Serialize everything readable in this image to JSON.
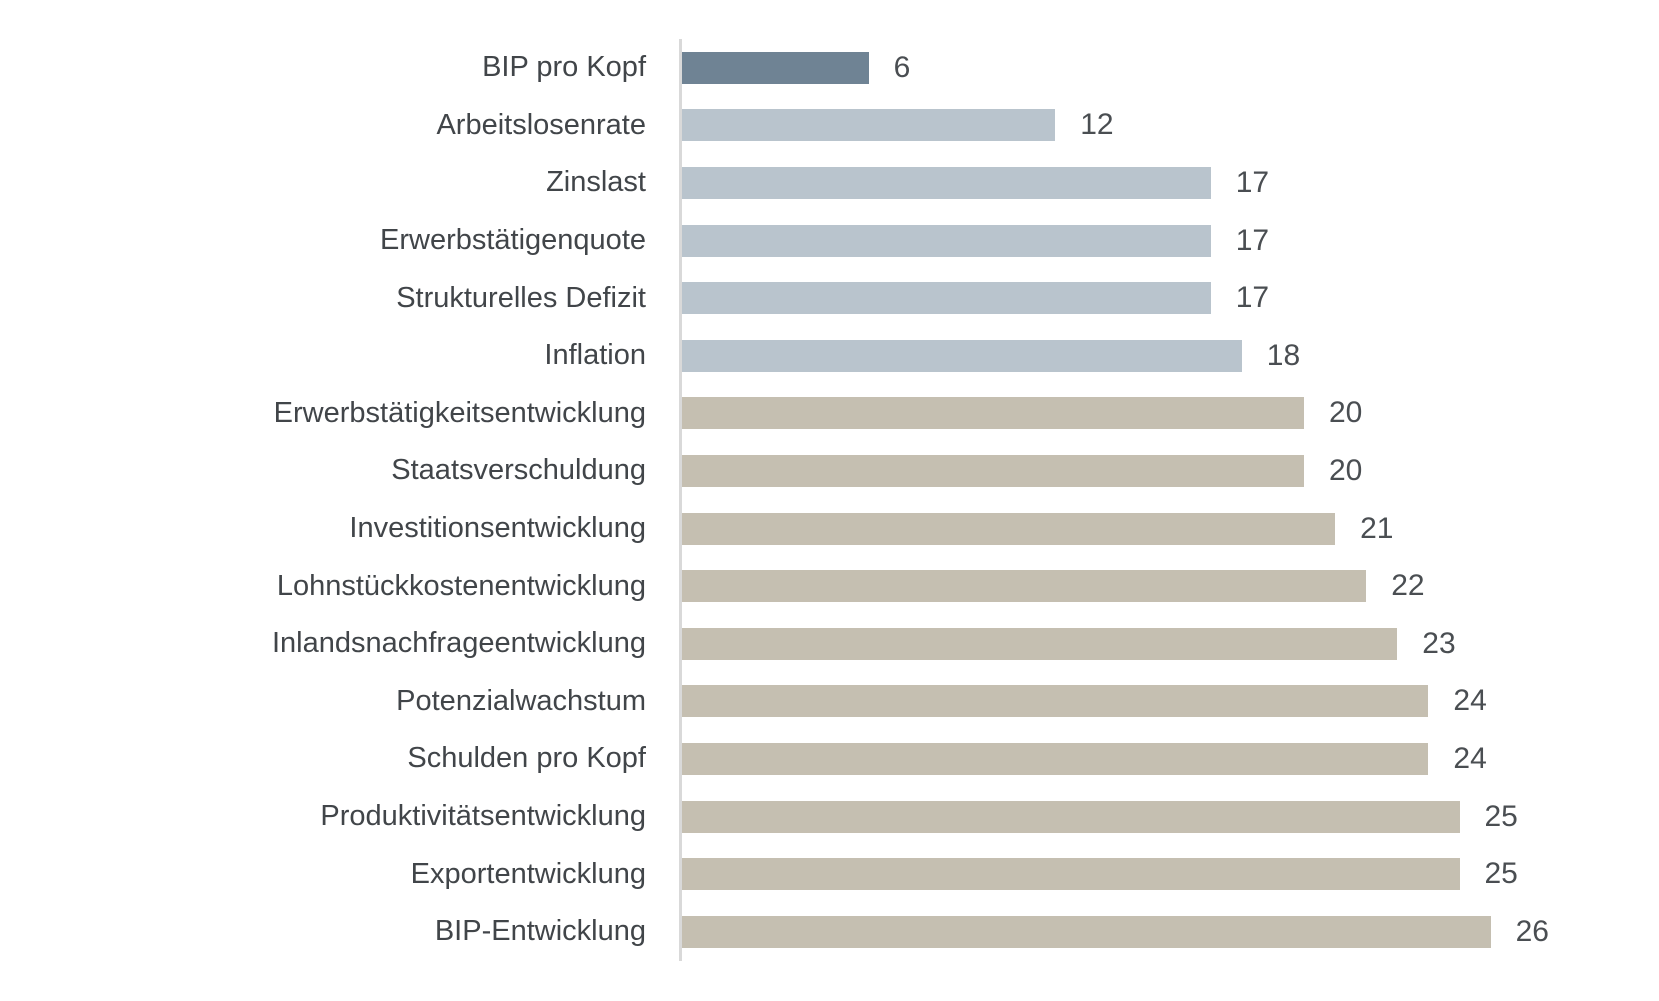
{
  "colors": {
    "bar_dark_blue": "#6F8394",
    "bar_light_blue": "#B9C4CD",
    "bar_beige": "#C5BFB1",
    "axis_line": "#D9D9D9",
    "label_text": "#414549"
  },
  "chart_data": {
    "type": "bar",
    "orientation": "horizontal",
    "title": "",
    "xlabel": "",
    "ylabel": "",
    "grid": false,
    "legend": false,
    "axis_ticks_visible": false,
    "xlim": [
      0,
      30
    ],
    "categories": [
      "BIP pro Kopf",
      "Arbeitslosenrate",
      "Zinslast",
      "Erwerbstätigenquote",
      "Strukturelles Defizit",
      "Inflation",
      "Erwerbstätigkeitsentwicklung",
      "Staatsverschuldung",
      "Investitionsentwicklung",
      "Lohnstückkostenentwicklung",
      "Inlandsnachfrageentwicklung",
      "Potenzialwachstum",
      "Schulden pro Kopf",
      "Produktivitätsentwicklung",
      "Exportentwicklung",
      "BIP-Entwicklung"
    ],
    "values": [
      6,
      12,
      17,
      17,
      17,
      18,
      20,
      20,
      21,
      22,
      23,
      24,
      24,
      25,
      25,
      26
    ],
    "bar_color_groups": [
      "dark_blue",
      "light_blue",
      "light_blue",
      "light_blue",
      "light_blue",
      "light_blue",
      "beige",
      "beige",
      "beige",
      "beige",
      "beige",
      "beige",
      "beige",
      "beige",
      "beige",
      "beige"
    ]
  }
}
